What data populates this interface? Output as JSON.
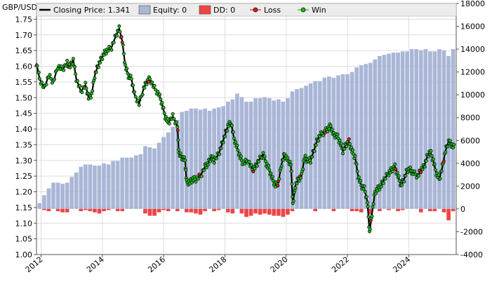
{
  "chart_data": {
    "type": "line",
    "y_left_label": "GBP/USD",
    "x_ticks": [
      "2012",
      "2014",
      "2016",
      "2018",
      "2020",
      "2022",
      "2024"
    ],
    "x_tick_years": [
      2012,
      2014,
      2016,
      2018,
      2020,
      2022,
      2024
    ],
    "xlim": [
      2011.85,
      2025.55
    ],
    "y_left_ticks": [
      "1.00",
      "1.05",
      "1.10",
      "1.15",
      "1.20",
      "1.25",
      "1.30",
      "1.35",
      "1.40",
      "1.45",
      "1.50",
      "1.55",
      "1.60",
      "1.65",
      "1.70",
      "1.75"
    ],
    "y_left_lim": [
      1.0,
      1.8
    ],
    "y_right_ticks": [
      "-4000",
      "-2000",
      "0",
      "2000",
      "4000",
      "6000",
      "8000",
      "10000",
      "12000",
      "14000",
      "16000",
      "18000"
    ],
    "y_right_lim": [
      -4000,
      18000
    ],
    "grid": true,
    "legend": {
      "position": "top",
      "items": [
        {
          "label": "Closing Price: 1.341",
          "kind": "line",
          "color": "#000000"
        },
        {
          "label": "Equity: 0",
          "kind": "box",
          "color": "#aab6d6"
        },
        {
          "label": "DD: 0",
          "kind": "box",
          "color": "#ef4444"
        },
        {
          "label": "Loss",
          "kind": "marker",
          "color": "#e11d1d"
        },
        {
          "label": "Win",
          "kind": "marker",
          "color": "#22bb22"
        }
      ]
    },
    "series": [
      {
        "name": "Closing Price",
        "color": "#000000",
        "points": [
          [
            2011.85,
            1.61
          ],
          [
            2011.95,
            1.56
          ],
          [
            2012.1,
            1.53
          ],
          [
            2012.25,
            1.57
          ],
          [
            2012.4,
            1.55
          ],
          [
            2012.55,
            1.6
          ],
          [
            2012.7,
            1.59
          ],
          [
            2012.85,
            1.61
          ],
          [
            2012.95,
            1.6
          ],
          [
            2013.05,
            1.62
          ],
          [
            2013.15,
            1.56
          ],
          [
            2013.3,
            1.52
          ],
          [
            2013.45,
            1.54
          ],
          [
            2013.55,
            1.5
          ],
          [
            2013.65,
            1.51
          ],
          [
            2013.75,
            1.57
          ],
          [
            2013.85,
            1.6
          ],
          [
            2013.95,
            1.62
          ],
          [
            2014.05,
            1.64
          ],
          [
            2014.15,
            1.65
          ],
          [
            2014.3,
            1.66
          ],
          [
            2014.45,
            1.7
          ],
          [
            2014.55,
            1.72
          ],
          [
            2014.65,
            1.68
          ],
          [
            2014.75,
            1.6
          ],
          [
            2014.85,
            1.57
          ],
          [
            2014.95,
            1.56
          ],
          [
            2015.05,
            1.51
          ],
          [
            2015.2,
            1.48
          ],
          [
            2015.35,
            1.53
          ],
          [
            2015.45,
            1.55
          ],
          [
            2015.55,
            1.56
          ],
          [
            2015.7,
            1.53
          ],
          [
            2015.85,
            1.51
          ],
          [
            2015.95,
            1.48
          ],
          [
            2016.05,
            1.44
          ],
          [
            2016.15,
            1.42
          ],
          [
            2016.3,
            1.44
          ],
          [
            2016.45,
            1.41
          ],
          [
            2016.5,
            1.32
          ],
          [
            2016.6,
            1.31
          ],
          [
            2016.7,
            1.3
          ],
          [
            2016.75,
            1.23
          ],
          [
            2016.85,
            1.23
          ],
          [
            2016.95,
            1.24
          ],
          [
            2017.05,
            1.24
          ],
          [
            2017.2,
            1.25
          ],
          [
            2017.35,
            1.28
          ],
          [
            2017.45,
            1.29
          ],
          [
            2017.55,
            1.31
          ],
          [
            2017.65,
            1.3
          ],
          [
            2017.8,
            1.32
          ],
          [
            2017.9,
            1.35
          ],
          [
            2018.0,
            1.38
          ],
          [
            2018.1,
            1.41
          ],
          [
            2018.2,
            1.42
          ],
          [
            2018.3,
            1.37
          ],
          [
            2018.4,
            1.34
          ],
          [
            2018.5,
            1.31
          ],
          [
            2018.6,
            1.29
          ],
          [
            2018.75,
            1.3
          ],
          [
            2018.9,
            1.27
          ],
          [
            2019.0,
            1.28
          ],
          [
            2019.1,
            1.3
          ],
          [
            2019.25,
            1.32
          ],
          [
            2019.35,
            1.29
          ],
          [
            2019.45,
            1.27
          ],
          [
            2019.55,
            1.24
          ],
          [
            2019.65,
            1.22
          ],
          [
            2019.75,
            1.23
          ],
          [
            2019.85,
            1.29
          ],
          [
            2019.95,
            1.32
          ],
          [
            2020.05,
            1.3
          ],
          [
            2020.15,
            1.29
          ],
          [
            2020.22,
            1.16
          ],
          [
            2020.3,
            1.22
          ],
          [
            2020.4,
            1.24
          ],
          [
            2020.5,
            1.25
          ],
          [
            2020.6,
            1.31
          ],
          [
            2020.7,
            1.3
          ],
          [
            2020.8,
            1.3
          ],
          [
            2020.9,
            1.33
          ],
          [
            2021.0,
            1.36
          ],
          [
            2021.1,
            1.38
          ],
          [
            2021.25,
            1.39
          ],
          [
            2021.35,
            1.4
          ],
          [
            2021.45,
            1.41
          ],
          [
            2021.55,
            1.38
          ],
          [
            2021.65,
            1.38
          ],
          [
            2021.75,
            1.36
          ],
          [
            2021.85,
            1.33
          ],
          [
            2021.95,
            1.35
          ],
          [
            2022.05,
            1.36
          ],
          [
            2022.15,
            1.33
          ],
          [
            2022.25,
            1.31
          ],
          [
            2022.35,
            1.25
          ],
          [
            2022.45,
            1.22
          ],
          [
            2022.55,
            1.21
          ],
          [
            2022.65,
            1.17
          ],
          [
            2022.72,
            1.07
          ],
          [
            2022.8,
            1.13
          ],
          [
            2022.9,
            1.2
          ],
          [
            2023.0,
            1.21
          ],
          [
            2023.1,
            1.22
          ],
          [
            2023.2,
            1.24
          ],
          [
            2023.35,
            1.26
          ],
          [
            2023.45,
            1.27
          ],
          [
            2023.55,
            1.28
          ],
          [
            2023.65,
            1.25
          ],
          [
            2023.75,
            1.22
          ],
          [
            2023.85,
            1.24
          ],
          [
            2023.95,
            1.27
          ],
          [
            2024.05,
            1.27
          ],
          [
            2024.15,
            1.26
          ],
          [
            2024.3,
            1.25
          ],
          [
            2024.4,
            1.27
          ],
          [
            2024.5,
            1.28
          ],
          [
            2024.6,
            1.31
          ],
          [
            2024.7,
            1.33
          ],
          [
            2024.8,
            1.3
          ],
          [
            2024.9,
            1.26
          ],
          [
            2025.0,
            1.24
          ],
          [
            2025.1,
            1.28
          ],
          [
            2025.2,
            1.33
          ],
          [
            2025.3,
            1.36
          ],
          [
            2025.4,
            1.35
          ],
          [
            2025.5,
            1.34
          ]
        ]
      },
      {
        "name": "Equity",
        "color": "#aab6d6",
        "bar_width_years": 0.13,
        "points": [
          [
            2011.95,
            500
          ],
          [
            2012.1,
            1200
          ],
          [
            2012.25,
            1800
          ],
          [
            2012.4,
            2300
          ],
          [
            2012.55,
            2300
          ],
          [
            2012.7,
            2200
          ],
          [
            2012.85,
            2300
          ],
          [
            2013.0,
            2800
          ],
          [
            2013.15,
            3200
          ],
          [
            2013.3,
            3700
          ],
          [
            2013.45,
            3900
          ],
          [
            2013.6,
            3900
          ],
          [
            2013.75,
            3800
          ],
          [
            2013.9,
            3800
          ],
          [
            2014.05,
            4000
          ],
          [
            2014.2,
            3900
          ],
          [
            2014.35,
            4200
          ],
          [
            2014.5,
            4200
          ],
          [
            2014.65,
            4500
          ],
          [
            2014.8,
            4500
          ],
          [
            2014.95,
            4500
          ],
          [
            2015.1,
            4700
          ],
          [
            2015.25,
            4800
          ],
          [
            2015.4,
            5500
          ],
          [
            2015.55,
            5400
          ],
          [
            2015.7,
            5300
          ],
          [
            2015.85,
            5800
          ],
          [
            2016.0,
            6300
          ],
          [
            2016.15,
            6700
          ],
          [
            2016.3,
            7200
          ],
          [
            2016.45,
            7800
          ],
          [
            2016.6,
            8500
          ],
          [
            2016.75,
            8600
          ],
          [
            2016.9,
            8800
          ],
          [
            2017.05,
            8800
          ],
          [
            2017.2,
            8700
          ],
          [
            2017.35,
            8800
          ],
          [
            2017.5,
            8600
          ],
          [
            2017.65,
            8800
          ],
          [
            2017.8,
            8900
          ],
          [
            2017.95,
            9000
          ],
          [
            2018.1,
            9400
          ],
          [
            2018.25,
            9600
          ],
          [
            2018.4,
            10100
          ],
          [
            2018.55,
            9800
          ],
          [
            2018.7,
            9400
          ],
          [
            2018.85,
            9400
          ],
          [
            2019.0,
            9700
          ],
          [
            2019.15,
            9700
          ],
          [
            2019.3,
            9800
          ],
          [
            2019.45,
            9700
          ],
          [
            2019.6,
            9500
          ],
          [
            2019.75,
            9600
          ],
          [
            2019.9,
            9400
          ],
          [
            2020.05,
            9700
          ],
          [
            2020.2,
            10300
          ],
          [
            2020.35,
            10500
          ],
          [
            2020.5,
            10600
          ],
          [
            2020.65,
            10800
          ],
          [
            2020.8,
            11000
          ],
          [
            2020.95,
            11200
          ],
          [
            2021.1,
            11200
          ],
          [
            2021.25,
            11500
          ],
          [
            2021.4,
            11600
          ],
          [
            2021.55,
            11500
          ],
          [
            2021.7,
            11700
          ],
          [
            2021.85,
            11800
          ],
          [
            2022.0,
            11800
          ],
          [
            2022.15,
            12000
          ],
          [
            2022.3,
            12400
          ],
          [
            2022.45,
            12600
          ],
          [
            2022.6,
            12700
          ],
          [
            2022.75,
            12800
          ],
          [
            2022.9,
            13100
          ],
          [
            2023.05,
            13400
          ],
          [
            2023.2,
            13500
          ],
          [
            2023.35,
            13600
          ],
          [
            2023.5,
            13700
          ],
          [
            2023.65,
            13700
          ],
          [
            2023.8,
            13800
          ],
          [
            2023.95,
            13800
          ],
          [
            2024.1,
            14000
          ],
          [
            2024.25,
            14000
          ],
          [
            2024.4,
            13900
          ],
          [
            2024.55,
            14000
          ],
          [
            2024.7,
            13800
          ],
          [
            2024.85,
            13800
          ],
          [
            2025.0,
            14000
          ],
          [
            2025.15,
            13900
          ],
          [
            2025.3,
            13400
          ],
          [
            2025.45,
            14000
          ]
        ]
      },
      {
        "name": "DD",
        "color": "#ef4444",
        "bar_width_years": 0.13,
        "points": [
          [
            2012.1,
            -100
          ],
          [
            2012.25,
            -200
          ],
          [
            2012.55,
            -200
          ],
          [
            2012.7,
            -300
          ],
          [
            2012.85,
            -300
          ],
          [
            2013.3,
            -200
          ],
          [
            2013.45,
            -100
          ],
          [
            2013.6,
            -200
          ],
          [
            2013.75,
            -300
          ],
          [
            2013.9,
            -400
          ],
          [
            2014.05,
            -200
          ],
          [
            2014.2,
            -100
          ],
          [
            2014.5,
            -200
          ],
          [
            2014.65,
            -200
          ],
          [
            2015.4,
            -400
          ],
          [
            2015.55,
            -600
          ],
          [
            2015.7,
            -600
          ],
          [
            2015.85,
            -300
          ],
          [
            2016.0,
            -100
          ],
          [
            2016.15,
            -200
          ],
          [
            2016.45,
            -200
          ],
          [
            2016.75,
            -300
          ],
          [
            2016.9,
            -300
          ],
          [
            2017.05,
            -400
          ],
          [
            2017.2,
            -500
          ],
          [
            2017.35,
            -200
          ],
          [
            2017.65,
            -200
          ],
          [
            2017.8,
            -100
          ],
          [
            2018.1,
            -300
          ],
          [
            2018.25,
            -400
          ],
          [
            2018.55,
            -400
          ],
          [
            2018.7,
            -700
          ],
          [
            2018.85,
            -600
          ],
          [
            2019.0,
            -400
          ],
          [
            2019.15,
            -500
          ],
          [
            2019.3,
            -400
          ],
          [
            2019.45,
            -500
          ],
          [
            2019.6,
            -600
          ],
          [
            2019.75,
            -600
          ],
          [
            2019.9,
            -700
          ],
          [
            2020.05,
            -500
          ],
          [
            2020.2,
            -200
          ],
          [
            2020.95,
            -200
          ],
          [
            2021.55,
            -200
          ],
          [
            2022.15,
            -200
          ],
          [
            2022.3,
            -200
          ],
          [
            2022.45,
            -300
          ],
          [
            2022.75,
            -500
          ],
          [
            2023.05,
            -200
          ],
          [
            2023.35,
            -100
          ],
          [
            2023.65,
            -200
          ],
          [
            2023.8,
            -100
          ],
          [
            2024.4,
            -300
          ],
          [
            2024.7,
            -200
          ],
          [
            2024.85,
            -200
          ],
          [
            2025.15,
            -300
          ],
          [
            2025.3,
            -1000
          ],
          [
            2025.45,
            -200
          ]
        ]
      }
    ],
    "markers": {
      "win_color": "#22bb22",
      "loss_color": "#e11d1d",
      "stroke": "#000000"
    }
  }
}
